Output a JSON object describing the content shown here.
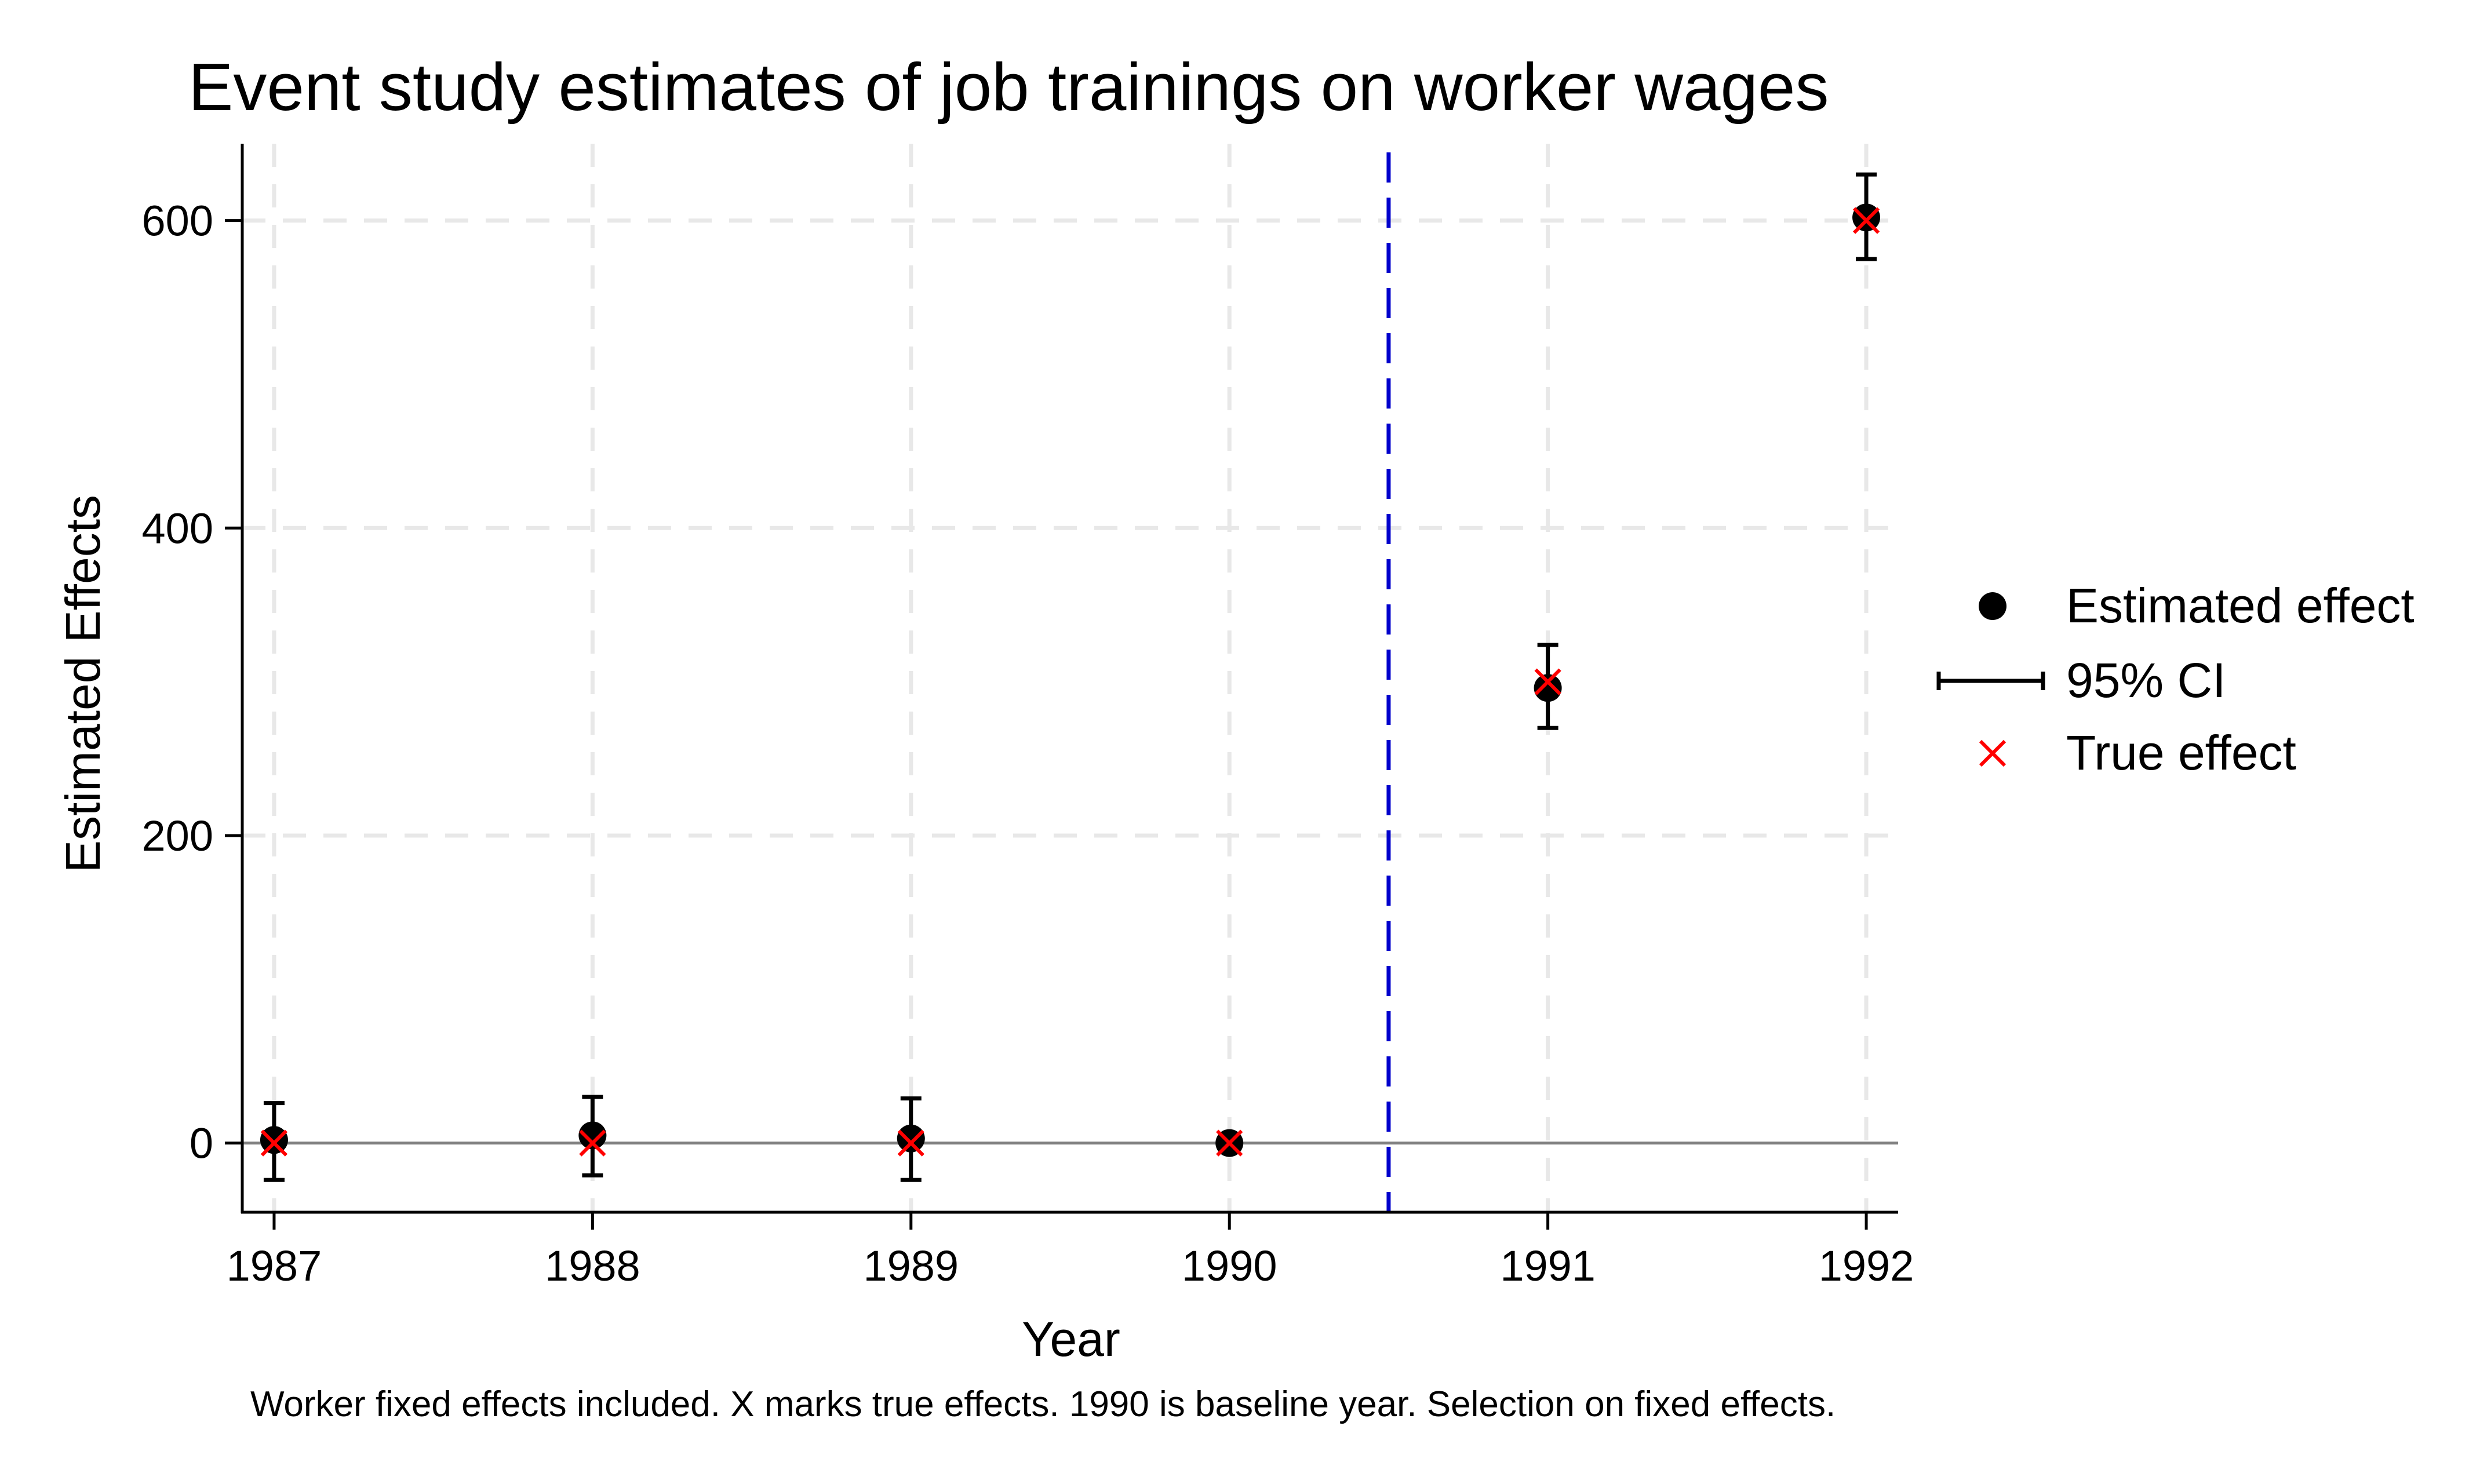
{
  "chart_data": {
    "type": "scatter",
    "title": "Event study estimates of job trainings on worker wages",
    "xlabel": "Year",
    "ylabel": "Estimated Effects",
    "note": "Worker fixed effects included. X marks true effects. 1990 is baseline year. Selection on fixed effects.",
    "x": [
      1987,
      1988,
      1989,
      1990,
      1991,
      1992
    ],
    "x_tick_labels": [
      "1987",
      "1988",
      "1989",
      "1990",
      "1991",
      "1992"
    ],
    "y_ticks": [
      0,
      200,
      400,
      600
    ],
    "y_tick_labels": [
      "0",
      "200",
      "400",
      "600"
    ],
    "xlim": [
      1986.9,
      1992.1
    ],
    "ylim": [
      -45,
      650
    ],
    "grid": true,
    "reference_lines": {
      "horizontal_y": 0,
      "vertical_x": 1990.5
    },
    "legend_position": "right",
    "series": [
      {
        "name": "Estimated effect",
        "kind": "point",
        "color": "#000000",
        "values": [
          2,
          5,
          3,
          0,
          296,
          602
        ]
      },
      {
        "name": "95% CI",
        "kind": "errorbar",
        "color": "#000000",
        "lower": [
          -24,
          -21,
          -24,
          0,
          270,
          575
        ],
        "upper": [
          26,
          30,
          29,
          0,
          324,
          630
        ]
      },
      {
        "name": "True effect",
        "kind": "x-marker",
        "color": "#ff0000",
        "values": [
          0,
          0,
          0,
          0,
          300,
          600
        ]
      }
    ],
    "colors": {
      "vline": "#0000cc",
      "zero_line": "#808080",
      "grid": "#e8e8e8"
    }
  }
}
